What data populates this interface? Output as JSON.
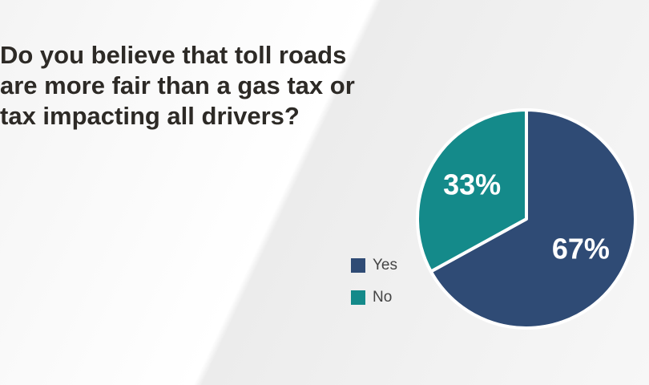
{
  "chart_data": {
    "type": "pie",
    "title": "Do you believe that toll roads are more fair than a gas tax or tax impacting all drivers?",
    "categories": [
      "Yes",
      "No"
    ],
    "values": [
      67,
      33
    ],
    "value_labels": [
      "67%",
      "33%"
    ],
    "colors": [
      "#2f4b75",
      "#148a8a"
    ],
    "legend": "left"
  }
}
